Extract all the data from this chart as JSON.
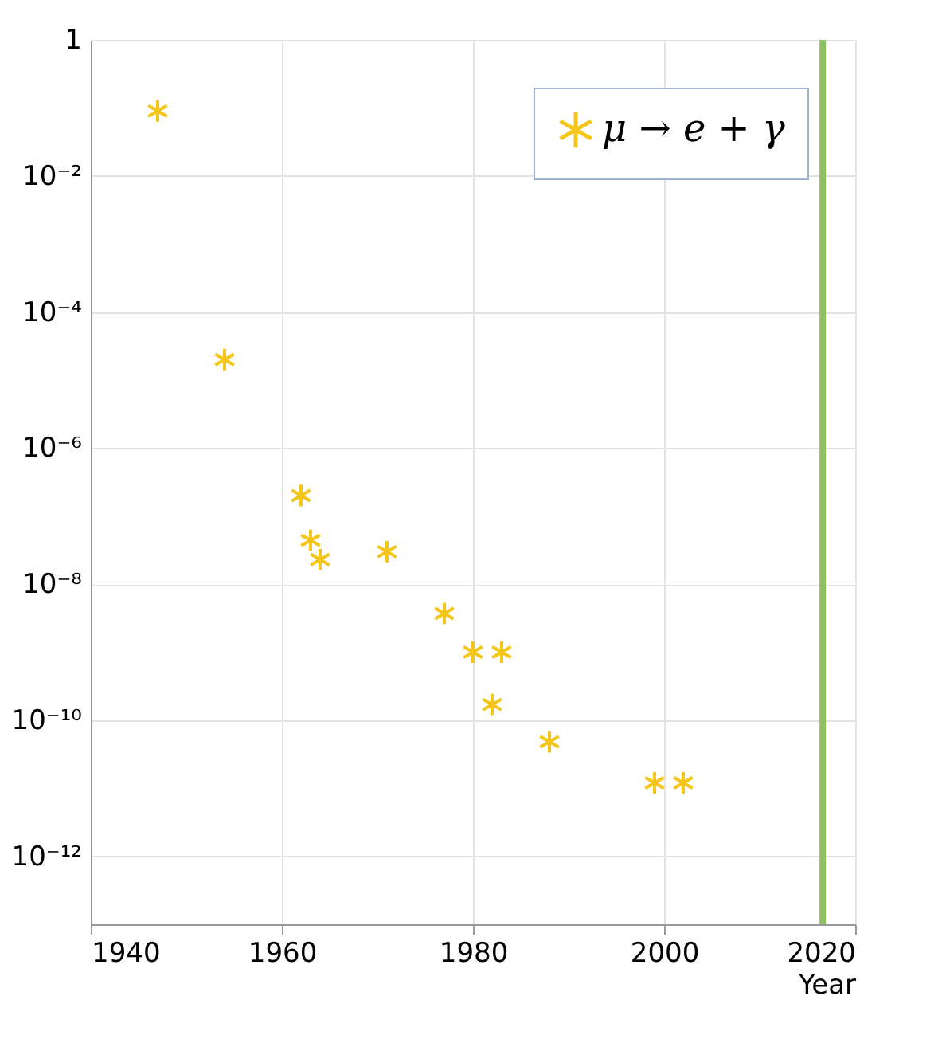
{
  "chart_data": {
    "type": "scatter",
    "xlabel": "Year",
    "legend": "top right",
    "grid": true,
    "log": "y",
    "marker": "cross",
    "xlim": [
      1940,
      2020
    ],
    "xticks": [
      1940,
      1960,
      1980,
      2000,
      2020
    ],
    "ylim": [
      1e-13,
      1
    ],
    "yticks": [
      1,
      {
        "value": 0.01,
        "label": "10⁻²"
      },
      {
        "value": 0.0001,
        "label": "10⁻⁴"
      },
      {
        "value": 1e-06,
        "label": "10⁻⁶"
      },
      {
        "value": 1e-08,
        "label": "10⁻⁸"
      },
      {
        "value": 1e-10,
        "label": "10⁻¹⁰"
      },
      {
        "value": 1e-12,
        "label": "10⁻¹²"
      }
    ],
    "series": [
      {
        "name": "μ → e + γ",
        "color": "#f5c518",
        "x": [
          1947,
          1954,
          1962,
          1963,
          1964,
          1971,
          1977,
          1980,
          1983,
          1982,
          1988,
          1999,
          2002
        ],
        "values": [
          0.09,
          2e-05,
          2e-07,
          4.4e-08,
          2.3e-08,
          3e-08,
          3.7e-09,
          1e-09,
          1e-09,
          1.7e-10,
          4.8e-11,
          1.2e-11,
          1.2e-11
        ]
      }
    ],
    "ref_lines": [
      {
        "axis": "x",
        "value": 2016.6,
        "color": "#8cc063"
      }
    ]
  }
}
